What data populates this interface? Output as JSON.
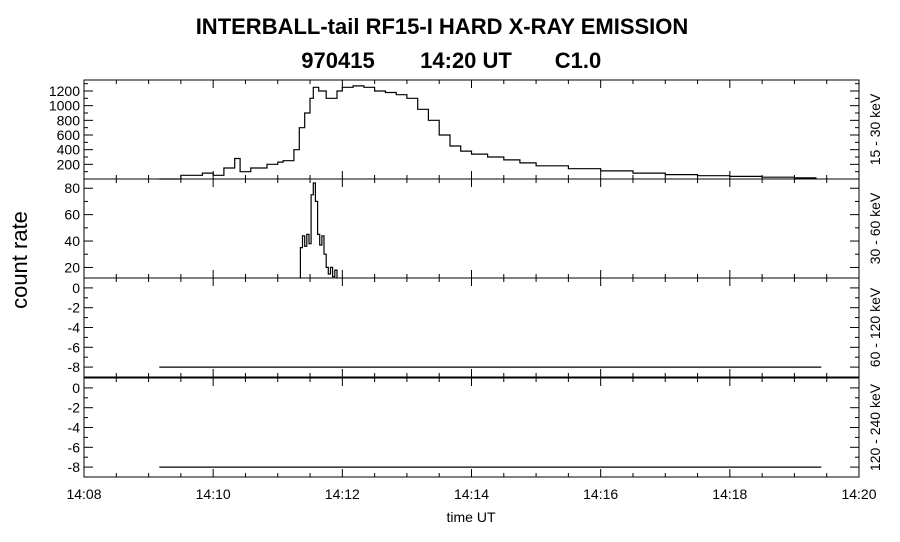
{
  "title": "INTERBALL-tail  RF15-I  HARD  X-RAY  EMISSION",
  "subtitle_date": "970415",
  "subtitle_time": "14:20 UT",
  "subtitle_class": "C1.0",
  "y_axis_label": "count rate",
  "x_axis_label": "time UT",
  "chart_data": {
    "type": "line",
    "x_axis": {
      "label": "time UT",
      "range": [
        "14:08",
        "14:20"
      ],
      "ticks": [
        "14:08",
        "14:10",
        "14:12",
        "14:14",
        "14:16",
        "14:18",
        "14:20"
      ]
    },
    "panels": [
      {
        "band": "15 - 30 keV",
        "ylim": [
          0,
          1350
        ],
        "yticks": [
          200,
          400,
          600,
          800,
          1000,
          1200
        ],
        "ytick_labels": [
          "200",
          "400",
          "600",
          "800",
          "1000",
          "1200"
        ],
        "series": {
          "x": [
            "14:09:10",
            "14:09:30",
            "14:09:50",
            "14:10:00",
            "14:10:10",
            "14:10:20",
            "14:10:25",
            "14:10:35",
            "14:10:50",
            "14:11:00",
            "14:11:05",
            "14:11:15",
            "14:11:20",
            "14:11:25",
            "14:11:30",
            "14:11:33",
            "14:11:38",
            "14:11:45",
            "14:11:55",
            "14:12:00",
            "14:12:10",
            "14:12:20",
            "14:12:30",
            "14:12:40",
            "14:12:50",
            "14:13:00",
            "14:13:10",
            "14:13:20",
            "14:13:30",
            "14:13:40",
            "14:13:50",
            "14:14:00",
            "14:14:15",
            "14:14:30",
            "14:14:45",
            "14:15:00",
            "14:15:30",
            "14:16:00",
            "14:16:30",
            "14:17:00",
            "14:17:30",
            "14:18:00",
            "14:18:30",
            "14:19:00",
            "14:19:20"
          ],
          "y": [
            0,
            50,
            80,
            50,
            150,
            280,
            100,
            150,
            200,
            230,
            250,
            400,
            700,
            900,
            1100,
            1250,
            1200,
            1100,
            1200,
            1250,
            1270,
            1250,
            1200,
            1180,
            1150,
            1100,
            950,
            800,
            600,
            450,
            380,
            340,
            300,
            260,
            220,
            180,
            140,
            110,
            80,
            60,
            45,
            35,
            25,
            15,
            0
          ]
        }
      },
      {
        "band": "30 - 60 keV",
        "ylim": [
          12,
          87
        ],
        "yticks": [
          20,
          40,
          60,
          80
        ],
        "ytick_labels": [
          "20",
          "40",
          "60",
          "80"
        ],
        "series": {
          "x": [
            "14:11:21",
            "14:11:21",
            "14:11:23",
            "14:11:25",
            "14:11:27",
            "14:11:29",
            "14:11:31",
            "14:11:33",
            "14:11:35",
            "14:11:37",
            "14:11:39",
            "14:11:41",
            "14:11:43",
            "14:11:45",
            "14:11:47",
            "14:11:49",
            "14:11:51",
            "14:11:53",
            "14:11:55"
          ],
          "y": [
            12,
            35,
            44,
            36,
            45,
            38,
            75,
            84,
            70,
            45,
            37,
            44,
            30,
            20,
            15,
            20,
            13,
            18,
            12
          ]
        }
      },
      {
        "band": "60 - 120 keV",
        "ylim": [
          -9,
          1
        ],
        "yticks": [
          0,
          -2,
          -4,
          -6,
          -8
        ],
        "ytick_labels": [
          "0",
          "-2",
          "-4",
          "-6",
          "-8"
        ],
        "series": {
          "x": [
            "14:09:10",
            "14:19:25"
          ],
          "y": [
            -8,
            -8
          ]
        }
      },
      {
        "band": "120 - 240 keV",
        "ylim": [
          -9,
          1
        ],
        "yticks": [
          0,
          -2,
          -4,
          -6,
          -8
        ],
        "ytick_labels": [
          "0",
          "-2",
          "-4",
          "-6",
          "-8"
        ],
        "series": {
          "x": [
            "14:09:10",
            "14:19:25"
          ],
          "y": [
            -8,
            -8
          ]
        }
      }
    ]
  }
}
